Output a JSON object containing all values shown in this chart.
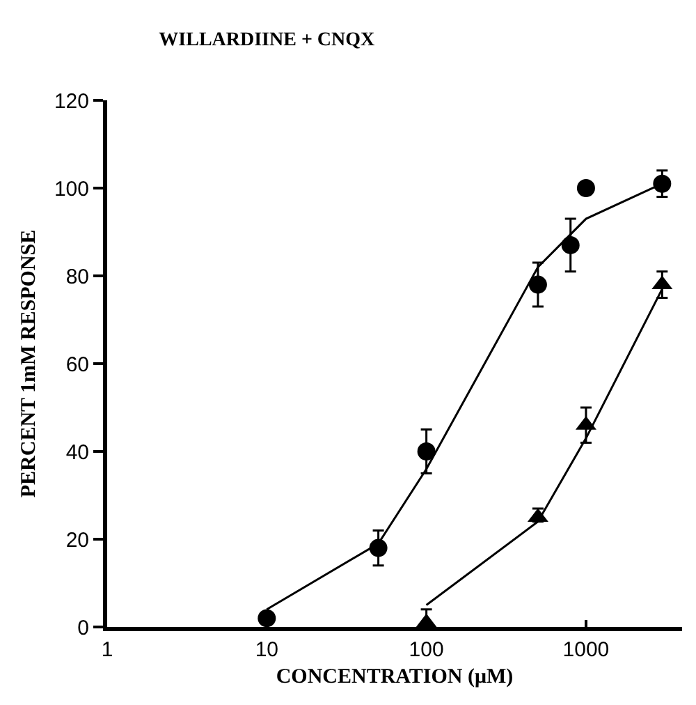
{
  "chart_data": {
    "type": "scatter",
    "title": "WILLARDIINE + CNQX",
    "xlabel": "CONCENTRATION (μM)",
    "ylabel": "PERCENT 1mM RESPONSE",
    "log": "x",
    "xlim": [
      1,
      4000
    ],
    "xticks": [
      1,
      10,
      100,
      1000
    ],
    "ylim": [
      0,
      120
    ],
    "yticks": [
      0,
      20,
      40,
      60,
      80,
      100,
      120
    ],
    "grid": false,
    "series": [
      {
        "marker": "circle",
        "color": "#000000",
        "x": [
          10,
          50,
          100,
          500,
          800,
          1000,
          3000
        ],
        "values": [
          2,
          18,
          40,
          78,
          87,
          100,
          101
        ],
        "errors": [
          null,
          [
            14,
            22
          ],
          [
            35,
            45
          ],
          [
            73,
            83
          ],
          [
            81,
            93
          ],
          null,
          [
            98,
            104
          ]
        ]
      },
      {
        "marker": "triangle",
        "color": "#000000",
        "x": [
          100,
          500,
          1000,
          3000
        ],
        "values": [
          1,
          25,
          46,
          78
        ],
        "errors": [
          [
            1,
            4
          ],
          [
            24,
            27
          ],
          [
            42,
            50
          ],
          [
            75,
            81
          ]
        ]
      },
      {
        "type": "line",
        "marker": "none",
        "line_style": "solid",
        "color": "#000000",
        "x": [
          10,
          50,
          100,
          500,
          1000,
          3000
        ],
        "values": [
          4,
          19,
          36,
          82,
          93,
          101
        ]
      },
      {
        "type": "line",
        "marker": "none",
        "line_style": "solid",
        "color": "#000000",
        "x": [
          100,
          500,
          1000,
          3000
        ],
        "values": [
          5,
          24,
          43,
          77
        ]
      }
    ]
  }
}
